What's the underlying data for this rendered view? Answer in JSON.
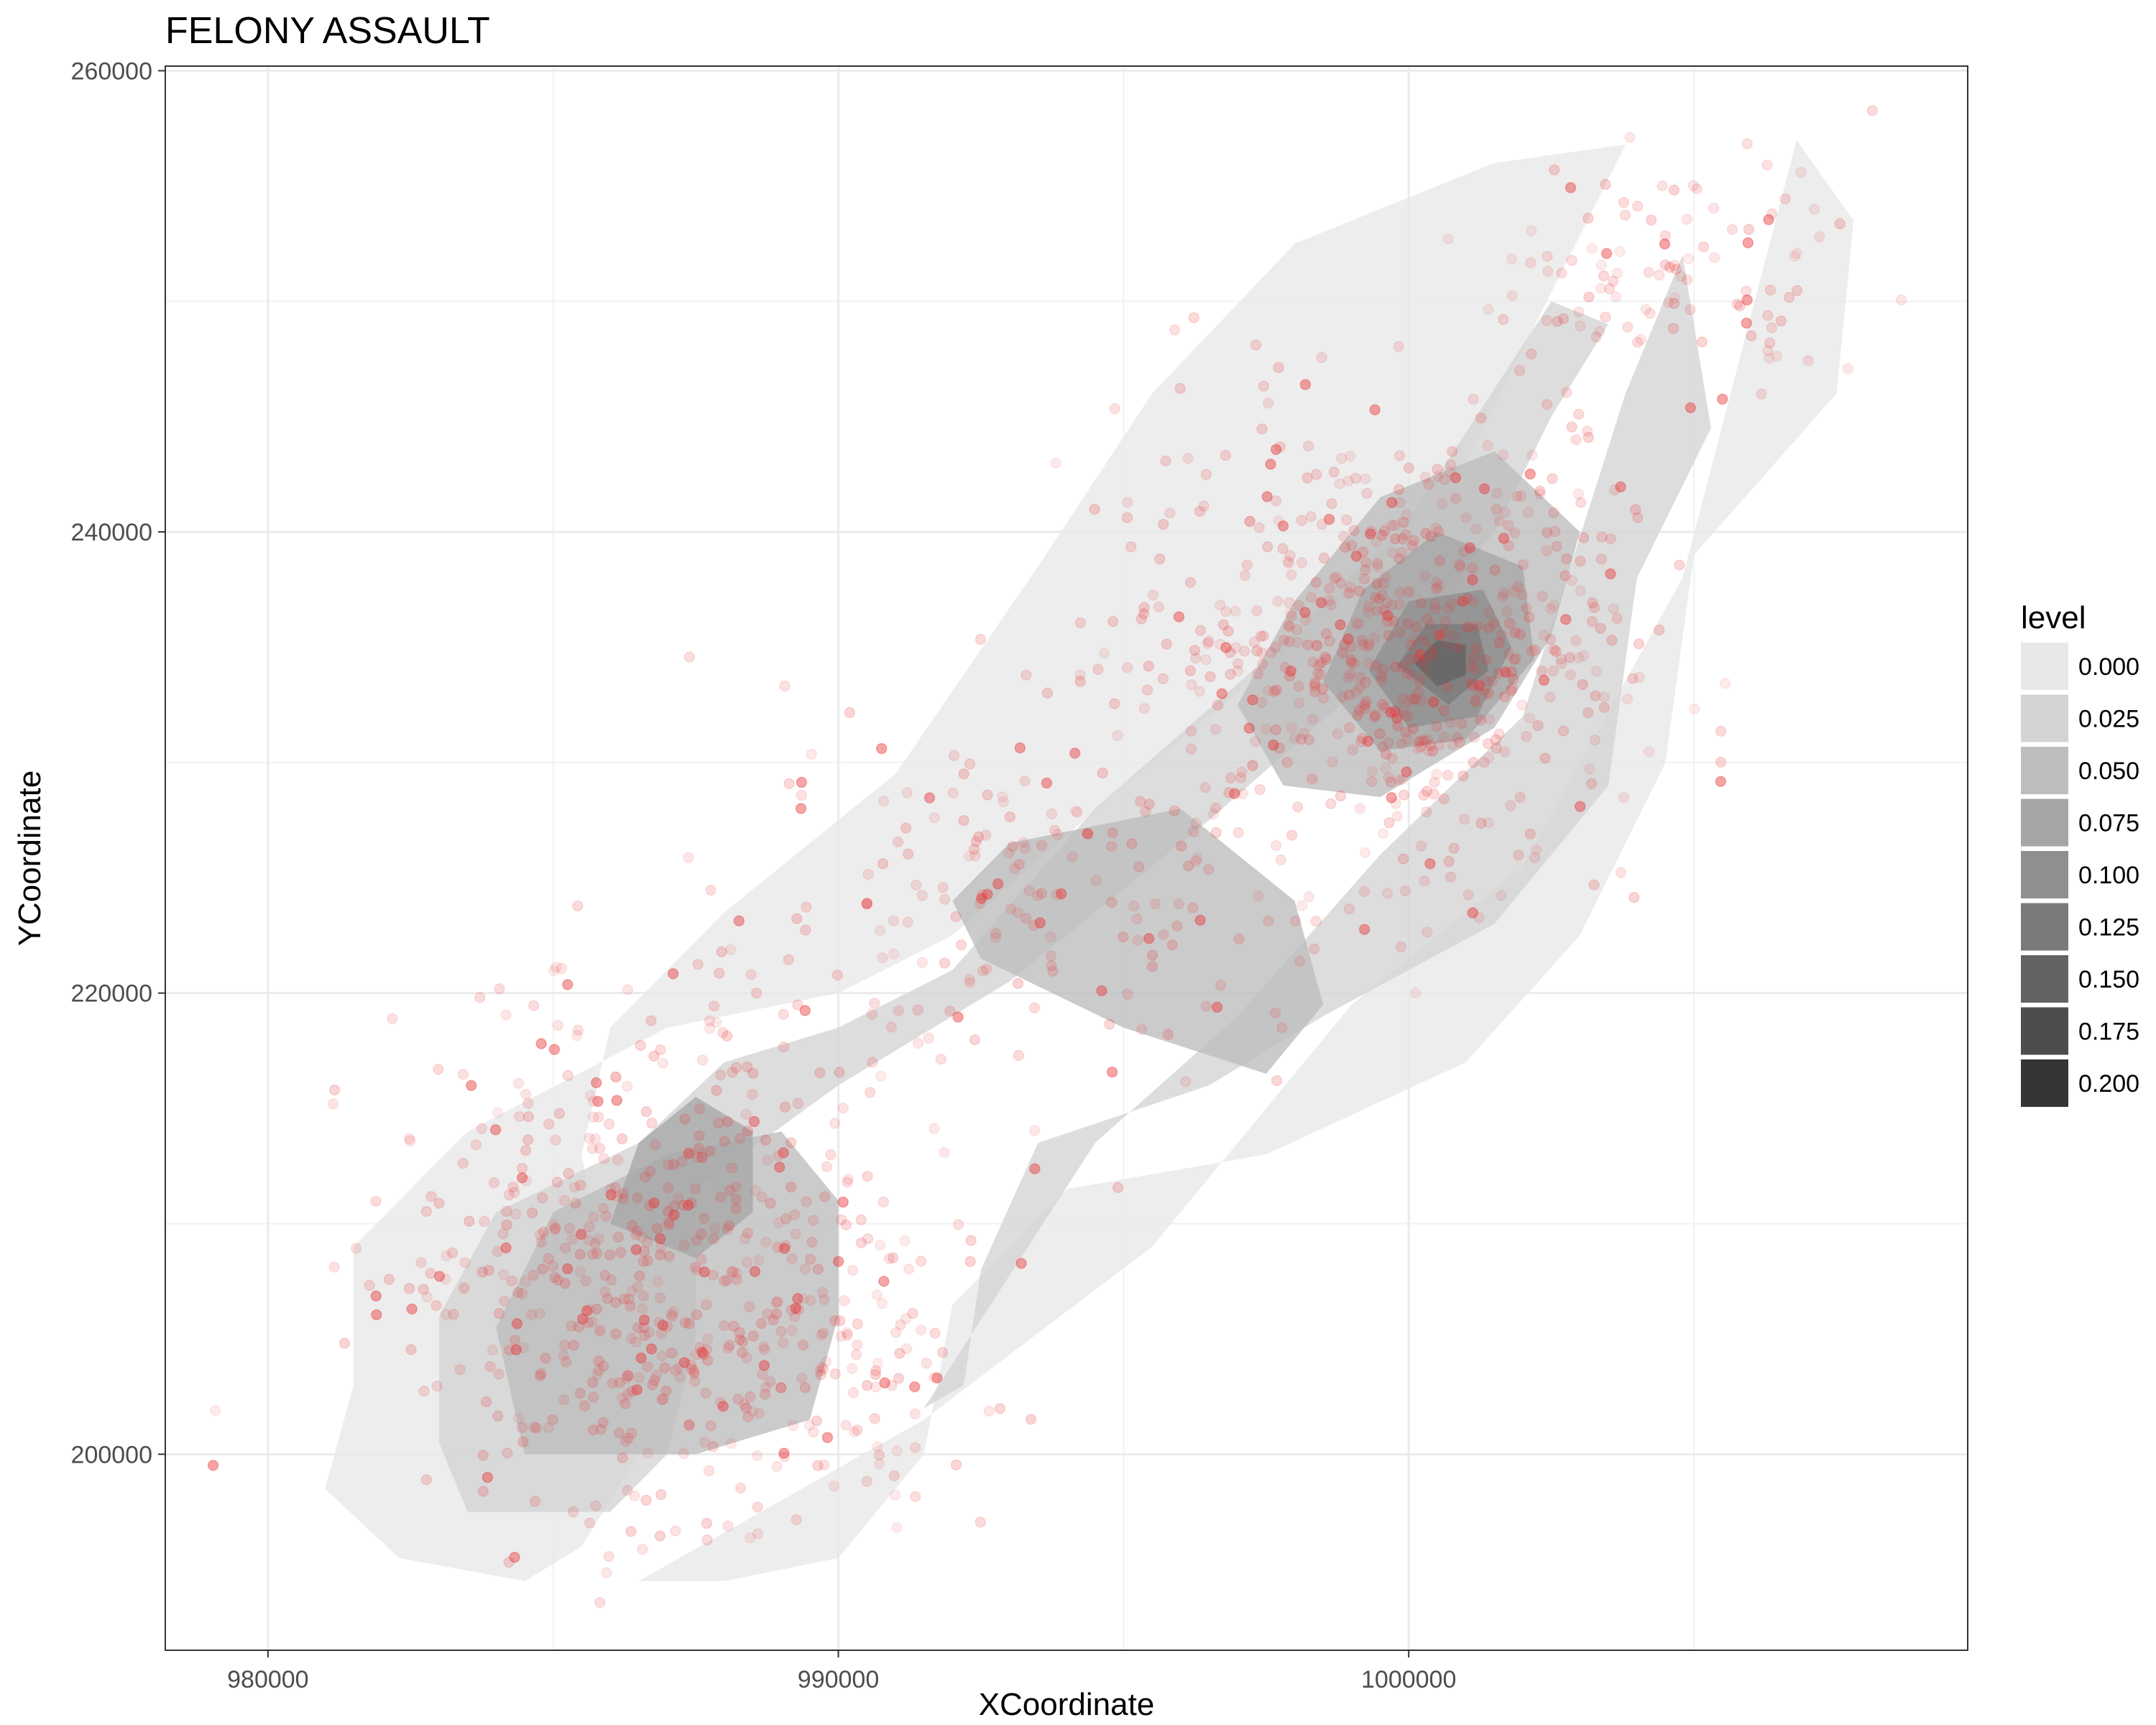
{
  "chart_data": {
    "type": "density-contour-scatter",
    "title": "FELONY ASSAULT",
    "xlabel": "XCoordinate",
    "ylabel": "YCoordinate",
    "xlim": [
      978200,
      1009800
    ],
    "ylim": [
      191500,
      260200
    ],
    "x_ticks": [
      980000,
      990000,
      1000000
    ],
    "x_tick_labels": [
      "980000",
      "990000",
      "1000000"
    ],
    "y_ticks": [
      200000,
      220000,
      240000,
      260000
    ],
    "y_tick_labels": [
      "200000",
      "220000",
      "240000",
      "260000"
    ],
    "x_minor": [
      985000,
      995000,
      1005000
    ],
    "y_minor": [
      210000,
      230000,
      250000
    ],
    "grid": true,
    "point_color": "#e8383a",
    "legend": {
      "title": "level",
      "position": "right",
      "entries": [
        {
          "label": "0.000",
          "color": "#e8e8e8"
        },
        {
          "label": "0.025",
          "color": "#d4d4d4"
        },
        {
          "label": "0.050",
          "color": "#bdbdbd"
        },
        {
          "label": "0.075",
          "color": "#a6a6a6"
        },
        {
          "label": "0.100",
          "color": "#8f8f8f"
        },
        {
          "label": "0.125",
          "color": "#7a7a7a"
        },
        {
          "label": "0.150",
          "color": "#636363"
        },
        {
          "label": "0.175",
          "color": "#4d4d4d"
        },
        {
          "label": "0.200",
          "color": "#353535"
        }
      ]
    },
    "contours": [
      {
        "level": "0.000",
        "points": [
          [
            984500,
            194500
          ],
          [
            982300,
            195500
          ],
          [
            981000,
            198500
          ],
          [
            981500,
            203000
          ],
          [
            981500,
            209000
          ],
          [
            983500,
            214000
          ],
          [
            987000,
            218500
          ],
          [
            990000,
            220000
          ],
          [
            992000,
            222500
          ],
          [
            995000,
            229000
          ],
          [
            998500,
            236000
          ],
          [
            1001000,
            243000
          ],
          [
            1003800,
            256800
          ],
          [
            1001500,
            256000
          ],
          [
            998000,
            252500
          ],
          [
            995500,
            246000
          ],
          [
            993500,
            238500
          ],
          [
            991000,
            229500
          ],
          [
            988000,
            223500
          ],
          [
            986000,
            218500
          ],
          [
            985500,
            213000
          ],
          [
            986000,
            206500
          ],
          [
            986500,
            200000
          ],
          [
            985500,
            196000
          ]
        ]
      },
      {
        "level": "0.000",
        "points": [
          [
            986500,
            194500
          ],
          [
            991500,
            201500
          ],
          [
            995500,
            209000
          ],
          [
            999000,
            219500
          ],
          [
            1002000,
            225500
          ],
          [
            1004800,
            238000
          ],
          [
            1006800,
            257000
          ],
          [
            1007800,
            253500
          ],
          [
            1007500,
            246000
          ],
          [
            1005000,
            239000
          ],
          [
            1004500,
            230000
          ],
          [
            1003000,
            222500
          ],
          [
            1001000,
            217000
          ],
          [
            997500,
            213000
          ],
          [
            994000,
            211500
          ],
          [
            992000,
            206500
          ],
          [
            991500,
            200000
          ],
          [
            990000,
            195500
          ],
          [
            988000,
            194500
          ]
        ]
      },
      {
        "level": "0.025",
        "points": [
          [
            983500,
            197500
          ],
          [
            983000,
            200500
          ],
          [
            983000,
            206000
          ],
          [
            984000,
            210500
          ],
          [
            986500,
            213500
          ],
          [
            988000,
            217000
          ],
          [
            990000,
            218500
          ],
          [
            992000,
            221000
          ],
          [
            994500,
            228000
          ],
          [
            997500,
            234500
          ],
          [
            1000000,
            240500
          ],
          [
            1002500,
            250000
          ],
          [
            1003500,
            249000
          ],
          [
            1002500,
            245000
          ],
          [
            1001500,
            240000
          ],
          [
            999500,
            234000
          ],
          [
            996500,
            227500
          ],
          [
            993000,
            220500
          ],
          [
            990000,
            216000
          ],
          [
            987500,
            211500
          ],
          [
            987500,
            205000
          ],
          [
            987000,
            200000
          ],
          [
            986000,
            197500
          ]
        ]
      },
      {
        "level": "0.025",
        "points": [
          [
            991500,
            202000
          ],
          [
            994500,
            213500
          ],
          [
            997000,
            219000
          ],
          [
            999500,
            226000
          ],
          [
            1002000,
            232000
          ],
          [
            1003800,
            246000
          ],
          [
            1004800,
            252000
          ],
          [
            1005300,
            244500
          ],
          [
            1004000,
            238000
          ],
          [
            1003500,
            229000
          ],
          [
            1001500,
            223000
          ],
          [
            998500,
            219000
          ],
          [
            996500,
            216000
          ],
          [
            993500,
            213500
          ],
          [
            992500,
            208000
          ],
          [
            992200,
            203000
          ]
        ]
      },
      {
        "level": "0.050",
        "points": [
          [
            984500,
            200000
          ],
          [
            984000,
            205500
          ],
          [
            985000,
            210500
          ],
          [
            987000,
            213000
          ],
          [
            989000,
            214000
          ],
          [
            990000,
            211000
          ],
          [
            990000,
            206000
          ],
          [
            989500,
            201500
          ],
          [
            987500,
            200000
          ]
        ]
      },
      {
        "level": "0.050",
        "points": [
          [
            992500,
            221500
          ],
          [
            995000,
            218500
          ],
          [
            997500,
            216500
          ],
          [
            998500,
            219500
          ],
          [
            998000,
            224000
          ],
          [
            996000,
            228000
          ],
          [
            993000,
            226500
          ],
          [
            992000,
            224000
          ]
        ]
      },
      {
        "level": "0.050",
        "points": [
          [
            997000,
            232500
          ],
          [
            998000,
            237000
          ],
          [
            999500,
            241500
          ],
          [
            1001500,
            243500
          ],
          [
            1003000,
            240000
          ],
          [
            1002500,
            235500
          ],
          [
            1001500,
            231500
          ],
          [
            999500,
            228500
          ],
          [
            997800,
            229000
          ]
        ]
      },
      {
        "level": "0.075",
        "points": [
          [
            986000,
            210000
          ],
          [
            986500,
            213500
          ],
          [
            987500,
            215500
          ],
          [
            988500,
            214000
          ],
          [
            988500,
            210500
          ],
          [
            987500,
            208500
          ]
        ]
      },
      {
        "level": "0.075",
        "points": [
          [
            998500,
            233500
          ],
          [
            999200,
            237500
          ],
          [
            1000500,
            240000
          ],
          [
            1002000,
            238500
          ],
          [
            1002200,
            234500
          ],
          [
            1001000,
            231000
          ],
          [
            999500,
            230500
          ]
        ]
      },
      {
        "level": "0.100",
        "points": [
          [
            999300,
            234000
          ],
          [
            1000000,
            237000
          ],
          [
            1001300,
            237500
          ],
          [
            1001800,
            235000
          ],
          [
            1001200,
            232000
          ],
          [
            1000000,
            231500
          ]
        ]
      },
      {
        "level": "0.125",
        "points": [
          [
            999800,
            234200
          ],
          [
            1000300,
            236000
          ],
          [
            1001200,
            236000
          ],
          [
            1001400,
            234000
          ],
          [
            1000700,
            232500
          ]
        ]
      },
      {
        "level": "0.150",
        "points": [
          [
            1000100,
            234300
          ],
          [
            1000500,
            235300
          ],
          [
            1001000,
            235100
          ],
          [
            1001000,
            233800
          ],
          [
            1000500,
            233300
          ]
        ]
      }
    ],
    "point_clusters": [
      {
        "cx": 986500,
        "cy": 208000,
        "sx": 2200,
        "sy": 5500,
        "n": 520
      },
      {
        "cx": 999500,
        "cy": 235000,
        "sx": 2200,
        "sy": 5000,
        "n": 650
      },
      {
        "cx": 993000,
        "cy": 223500,
        "sx": 2800,
        "sy": 4500,
        "n": 170
      },
      {
        "cx": 1004500,
        "cy": 251000,
        "sx": 1800,
        "sy": 2500,
        "n": 110
      },
      {
        "cx": 990000,
        "cy": 203000,
        "sx": 1200,
        "sy": 3500,
        "n": 90
      }
    ]
  }
}
